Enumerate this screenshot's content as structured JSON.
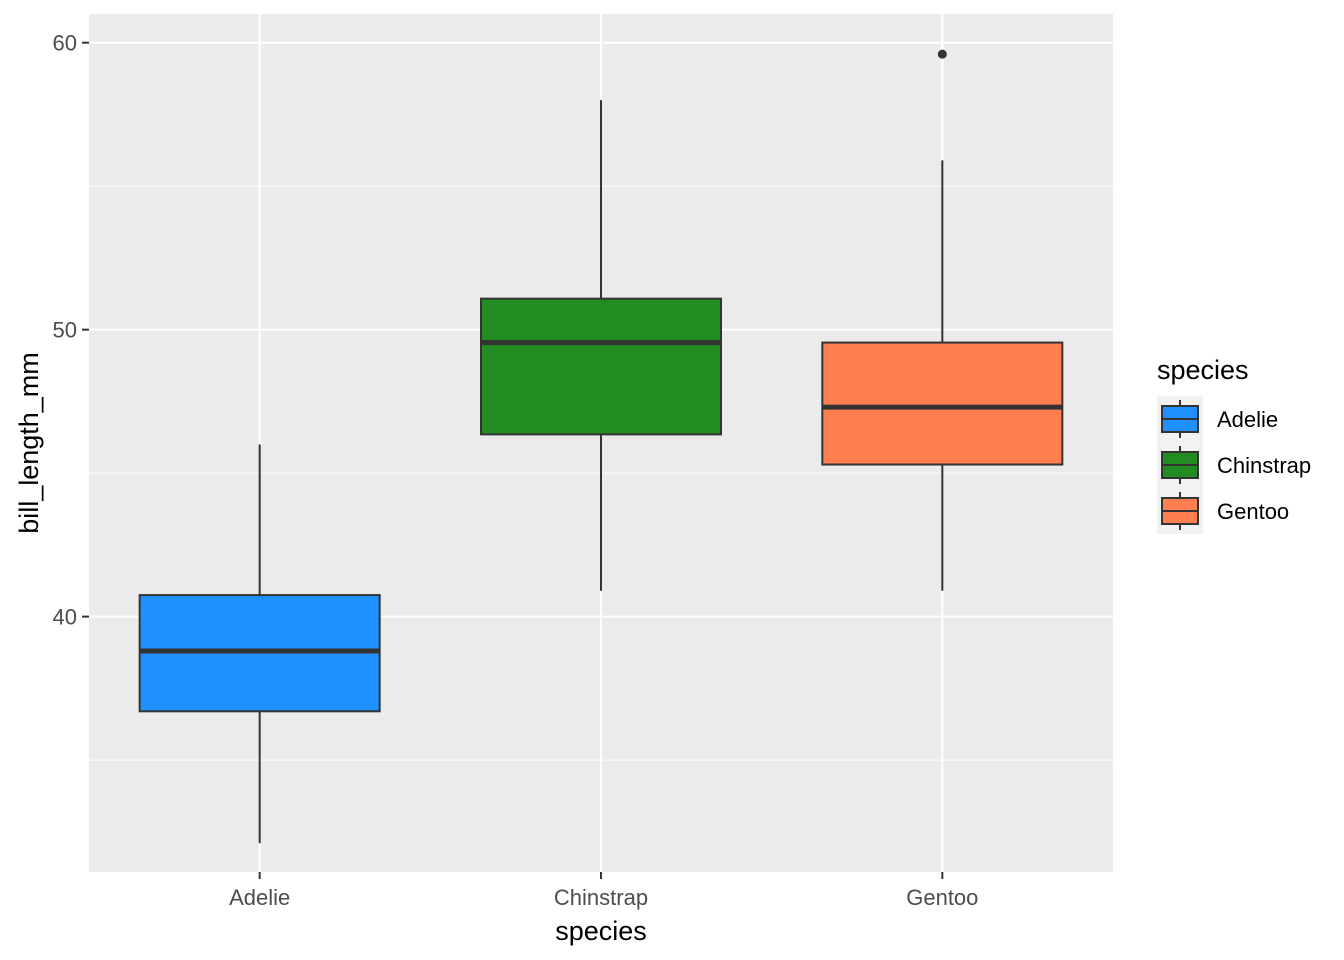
{
  "chart_data": {
    "type": "boxplot",
    "xlabel": "species",
    "ylabel": "bill_length_mm",
    "ylim": [
      31.1,
      61.0
    ],
    "y_ticks": [
      40,
      50,
      60
    ],
    "y_minor_ticks": [
      35,
      45,
      55
    ],
    "grid": true,
    "categories": [
      "Adelie",
      "Chinstrap",
      "Gentoo"
    ],
    "boxes": [
      {
        "category": "Adelie",
        "whisker_low": 32.1,
        "q1": 36.7,
        "median": 38.8,
        "q3": 40.75,
        "whisker_high": 46.0,
        "outliers": []
      },
      {
        "category": "Chinstrap",
        "whisker_low": 40.9,
        "q1": 46.35,
        "median": 49.55,
        "q3": 51.08,
        "whisker_high": 58.0,
        "outliers": []
      },
      {
        "category": "Gentoo",
        "whisker_low": 40.9,
        "q1": 45.3,
        "median": 47.3,
        "q3": 49.55,
        "whisker_high": 55.9,
        "outliers": [
          59.6
        ]
      }
    ],
    "legend": {
      "title": "species",
      "placement": "right",
      "entries": [
        {
          "label": "Adelie",
          "color": "#1E90FF"
        },
        {
          "label": "Chinstrap",
          "color": "#228B22"
        },
        {
          "label": "Gentoo",
          "color": "#FF7F50"
        }
      ]
    },
    "colors": {
      "panel_background": "#EBEBEB",
      "grid": "#FFFFFF",
      "box_outline": "#333333",
      "axis_text": "#4D4D4D"
    }
  }
}
